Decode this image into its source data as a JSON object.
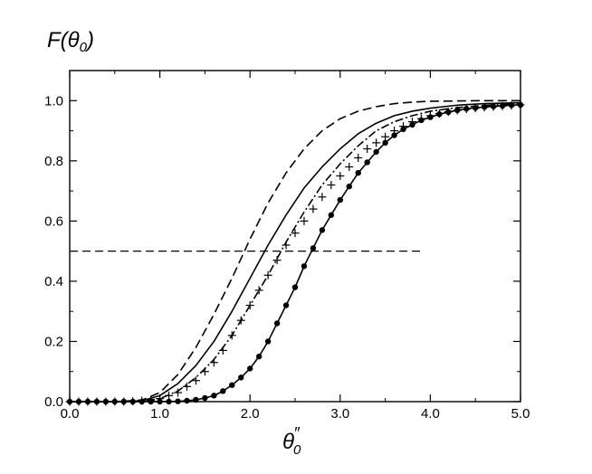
{
  "chart_data": {
    "type": "line",
    "title": "",
    "ylabel": {
      "main": "F(θ",
      "sub": "0",
      "tail": ")"
    },
    "xlabel": {
      "main": "θ",
      "sub": "0",
      "sup": "″"
    },
    "xlim": [
      0,
      5
    ],
    "ylim": [
      0,
      1.1
    ],
    "grid": false,
    "legend": "none",
    "x_ticks": [
      {
        "value": 0,
        "label": "0.0"
      },
      {
        "value": 1,
        "label": "1.0"
      },
      {
        "value": 2,
        "label": "2.0"
      },
      {
        "value": 3,
        "label": "3.0"
      },
      {
        "value": 4,
        "label": "4.0"
      },
      {
        "value": 5,
        "label": "5.0"
      }
    ],
    "y_ticks": [
      {
        "value": 0,
        "label": "0.0"
      },
      {
        "value": 0.2,
        "label": "0.2"
      },
      {
        "value": 0.4,
        "label": "0.4"
      },
      {
        "value": 0.6,
        "label": "0.6"
      },
      {
        "value": 0.8,
        "label": "0.8"
      },
      {
        "value": 1.0,
        "label": "1.0"
      }
    ],
    "reference_line": {
      "style": "dashed",
      "x": [
        0,
        3.9
      ],
      "y": [
        0.5,
        0.5
      ]
    },
    "series": [
      {
        "style": "dashed",
        "marker": "none",
        "x": [
          0,
          0.5,
          0.8,
          1.0,
          1.2,
          1.4,
          1.6,
          1.8,
          2.0,
          2.2,
          2.4,
          2.6,
          2.8,
          3.0,
          3.2,
          3.4,
          3.6,
          3.8,
          4.0,
          4.3,
          4.6,
          5.0
        ],
        "y": [
          0,
          0.0,
          0.005,
          0.03,
          0.09,
          0.18,
          0.29,
          0.41,
          0.54,
          0.66,
          0.76,
          0.84,
          0.9,
          0.94,
          0.965,
          0.98,
          0.99,
          0.995,
          0.998,
          0.999,
          1.0,
          1.0
        ]
      },
      {
        "style": "solid",
        "marker": "none",
        "x": [
          0,
          0.5,
          0.8,
          1.0,
          1.2,
          1.4,
          1.6,
          1.8,
          2.0,
          2.2,
          2.4,
          2.6,
          2.8,
          3.0,
          3.2,
          3.4,
          3.6,
          3.8,
          4.0,
          4.3,
          4.6,
          5.0
        ],
        "y": [
          0,
          0.0,
          0.003,
          0.02,
          0.06,
          0.12,
          0.2,
          0.3,
          0.41,
          0.52,
          0.62,
          0.71,
          0.78,
          0.84,
          0.89,
          0.925,
          0.95,
          0.965,
          0.975,
          0.985,
          0.99,
          0.993
        ]
      },
      {
        "style": "dash-dot",
        "marker": "none",
        "x": [
          0,
          0.5,
          0.8,
          1.0,
          1.2,
          1.4,
          1.6,
          1.8,
          2.0,
          2.2,
          2.4,
          2.6,
          2.8,
          3.0,
          3.2,
          3.4,
          3.6,
          3.8,
          4.0,
          4.3,
          4.6,
          5.0
        ],
        "y": [
          0,
          0.0,
          0.002,
          0.01,
          0.035,
          0.08,
          0.14,
          0.22,
          0.32,
          0.42,
          0.53,
          0.63,
          0.72,
          0.79,
          0.85,
          0.9,
          0.93,
          0.95,
          0.965,
          0.977,
          0.984,
          0.99
        ]
      },
      {
        "style": "none",
        "marker": "plus",
        "x": [
          0.0,
          0.1,
          0.2,
          0.3,
          0.4,
          0.5,
          0.6,
          0.7,
          0.8,
          0.9,
          1.0,
          1.1,
          1.2,
          1.3,
          1.4,
          1.5,
          1.6,
          1.7,
          1.8,
          1.9,
          2.0,
          2.1,
          2.2,
          2.3,
          2.4,
          2.5,
          2.6,
          2.7,
          2.8,
          2.9,
          3.0,
          3.1,
          3.2,
          3.3,
          3.4,
          3.5,
          3.6,
          3.7,
          3.8,
          3.9,
          4.0,
          4.1,
          4.2,
          4.3,
          4.4,
          4.5,
          4.6,
          4.7,
          4.8,
          4.9,
          5.0
        ],
        "y": [
          0.0,
          0.0,
          0.0,
          0.0,
          0.0,
          0.0,
          0.0,
          0.001,
          0.003,
          0.005,
          0.01,
          0.02,
          0.03,
          0.05,
          0.07,
          0.1,
          0.13,
          0.17,
          0.22,
          0.27,
          0.32,
          0.37,
          0.42,
          0.47,
          0.52,
          0.56,
          0.6,
          0.64,
          0.68,
          0.72,
          0.75,
          0.78,
          0.81,
          0.84,
          0.86,
          0.88,
          0.9,
          0.915,
          0.93,
          0.94,
          0.95,
          0.957,
          0.963,
          0.968,
          0.972,
          0.975,
          0.978,
          0.98,
          0.982,
          0.984,
          0.986
        ]
      },
      {
        "style": "solid",
        "marker": "filled-circle",
        "x": [
          0.0,
          0.1,
          0.2,
          0.3,
          0.4,
          0.5,
          0.6,
          0.7,
          0.8,
          0.9,
          1.0,
          1.1,
          1.2,
          1.3,
          1.4,
          1.5,
          1.6,
          1.7,
          1.8,
          1.9,
          2.0,
          2.1,
          2.2,
          2.3,
          2.4,
          2.5,
          2.6,
          2.7,
          2.8,
          2.9,
          3.0,
          3.1,
          3.2,
          3.3,
          3.4,
          3.5,
          3.6,
          3.7,
          3.8,
          3.9,
          4.0,
          4.1,
          4.2,
          4.3,
          4.4,
          4.5,
          4.6,
          4.7,
          4.8,
          4.9,
          5.0
        ],
        "y": [
          0.0,
          0.0,
          0.0,
          0.0,
          0.0,
          0.0,
          0.0,
          0.0,
          0.0,
          0.0,
          0.0,
          0.0,
          0.001,
          0.003,
          0.006,
          0.012,
          0.02,
          0.035,
          0.055,
          0.08,
          0.11,
          0.15,
          0.2,
          0.26,
          0.32,
          0.38,
          0.45,
          0.51,
          0.57,
          0.62,
          0.67,
          0.715,
          0.76,
          0.795,
          0.83,
          0.86,
          0.885,
          0.905,
          0.92,
          0.935,
          0.945,
          0.955,
          0.962,
          0.968,
          0.973,
          0.976,
          0.979,
          0.981,
          0.983,
          0.985,
          0.986
        ]
      }
    ]
  }
}
